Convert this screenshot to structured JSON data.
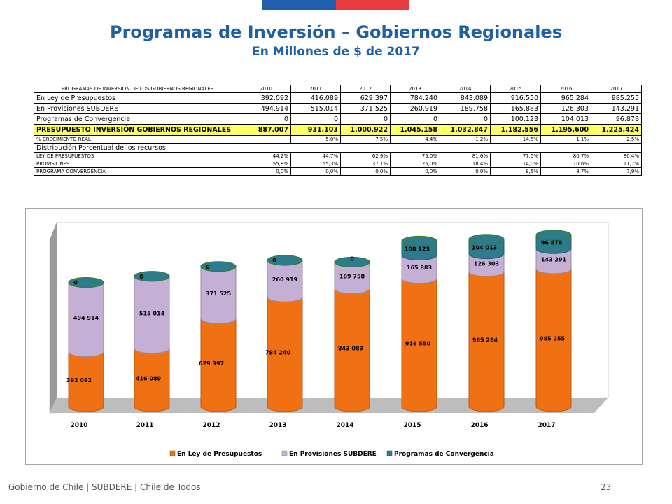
{
  "header": {
    "title": "Programas de Inversión – Gobiernos Regionales",
    "subtitle": "En Millones de $ de 2017"
  },
  "table": {
    "header_label": "PROGRAMAS DE INVERSION DE LOS GOBIERNOS REGIONALES",
    "years": [
      "2010",
      "2011",
      "2012",
      "2013",
      "2014",
      "2015",
      "2016",
      "2017"
    ],
    "rows": [
      {
        "label": "En Ley de Presupuestos",
        "values": [
          "392.092",
          "416.089",
          "629.397",
          "784.240",
          "843.089",
          "916.550",
          "965.284",
          "985.255"
        ],
        "style": "big"
      },
      {
        "label": "En Provisiones SUBDERE",
        "values": [
          "494.914",
          "515.014",
          "371.525",
          "260.919",
          "189.758",
          "165.883",
          "126.303",
          "143.291"
        ],
        "style": "big"
      },
      {
        "label": "Programas de Convergencia",
        "values": [
          "0",
          "0",
          "0",
          "0",
          "0",
          "100.123",
          "104.013",
          "96.878"
        ],
        "style": "big"
      },
      {
        "label": "PRESUPUESTO INVERSIÓN GOBIERNOS REGIONALES",
        "values": [
          "887.007",
          "931.103",
          "1.000.922",
          "1.045.158",
          "1.032.847",
          "1.182.556",
          "1.195.600",
          "1.225.424"
        ],
        "style": "total"
      },
      {
        "label": "% CRECIMIENTO REAL",
        "values": [
          "",
          "5,0%",
          "7,5%",
          "4,4%",
          "-1,2%",
          "14,5%",
          "1,1%",
          "2,5%"
        ],
        "style": "small"
      }
    ],
    "distribution_title": "Distribución Porcentual de los recursos",
    "distribution_rows": [
      {
        "label": "LEY DE PRESUPUESTOS",
        "values": [
          "44,2%",
          "44,7%",
          "62,9%",
          "75,0%",
          "81,6%",
          "77,5%",
          "80,7%",
          "80,4%"
        ]
      },
      {
        "label": "PROVISIONES",
        "values": [
          "55,8%",
          "55,3%",
          "37,1%",
          "25,0%",
          "18,4%",
          "14,0%",
          "10,6%",
          "11,7%"
        ]
      },
      {
        "label": "PROGRAMA CONVERGENCIA",
        "values": [
          "0,0%",
          "0,0%",
          "0,0%",
          "0,0%",
          "0,0%",
          "8,5%",
          "8,7%",
          "7,9%"
        ]
      }
    ]
  },
  "chart_data": {
    "type": "bar",
    "stacked": true,
    "categories": [
      "2010",
      "2011",
      "2012",
      "2013",
      "2014",
      "2015",
      "2016",
      "2017"
    ],
    "series": [
      {
        "name": "En Ley de Presupuestos",
        "values": [
          392092,
          416089,
          629397,
          784240,
          843089,
          916550,
          965284,
          985255
        ],
        "labels": [
          "392 092",
          "416 089",
          "629 397",
          "784 240",
          "843 089",
          "916 550",
          "965 284",
          "985 255"
        ],
        "color": "#f07014"
      },
      {
        "name": "En Provisiones SUBDERE",
        "values": [
          494914,
          515014,
          371525,
          260919,
          189758,
          165883,
          126303,
          143291
        ],
        "labels": [
          "494 914",
          "515 014",
          "371 525",
          "260 919",
          "189 758",
          "165 883",
          "126 303",
          "143 291"
        ],
        "color": "#c5b0d5"
      },
      {
        "name": "Programas de Convergencia",
        "values": [
          0,
          0,
          0,
          0,
          0,
          100123,
          104013,
          96878
        ],
        "labels": [
          "0",
          "0",
          "0",
          "0",
          "0",
          "100 123",
          "104 013",
          "96 878"
        ],
        "color": "#2e7b8c"
      }
    ],
    "legend_position": "bottom",
    "grid": false
  },
  "footer": {
    "text": "Gobierno de Chile | SUBDERE | Chile de Todos",
    "page": "23"
  }
}
